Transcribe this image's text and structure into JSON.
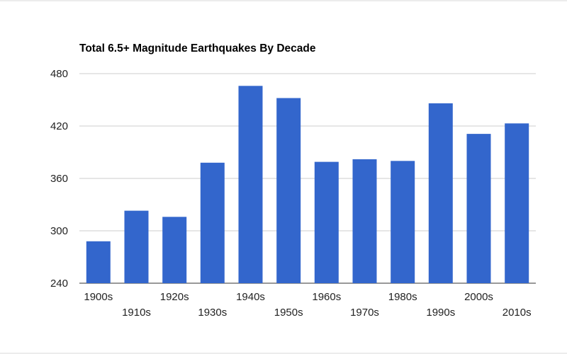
{
  "chart_data": {
    "type": "bar",
    "title": "Total 6.5+ Magnitude Earthquakes By Decade",
    "xlabel": "",
    "ylabel": "",
    "categories": [
      "1900s",
      "1910s",
      "1920s",
      "1930s",
      "1940s",
      "1950s",
      "1960s",
      "1970s",
      "1980s",
      "1990s",
      "2000s",
      "2010s"
    ],
    "values": [
      288,
      323,
      316,
      378,
      466,
      452,
      379,
      382,
      380,
      446,
      411,
      423
    ],
    "ylim": [
      240,
      480
    ],
    "yticks": [
      240,
      300,
      360,
      420,
      480
    ],
    "grid": true,
    "legend": "none",
    "colors": {
      "bar": "#3366cc",
      "grid": "#cccccc",
      "baseline": "#333333"
    }
  }
}
